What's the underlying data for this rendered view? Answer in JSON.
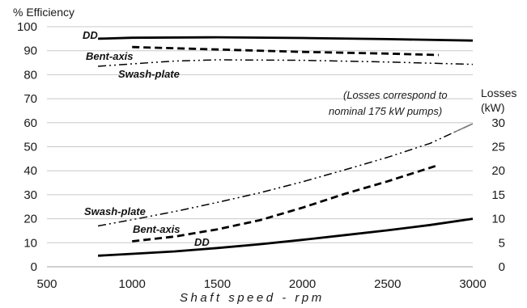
{
  "chart_data": {
    "type": "line",
    "title": "",
    "xlabel": "Shaft speed - rpm",
    "ylabel": "% Efficiency",
    "y2label_line1": "Losses",
    "y2label_line2": "(kW)",
    "note_line1": "(Losses correspond to",
    "note_line2": "nominal 175 kW pumps)",
    "xlim": [
      500,
      3000
    ],
    "ylim": [
      0,
      100
    ],
    "y2lim": [
      0,
      50
    ],
    "xticks": [
      500,
      1000,
      1500,
      2000,
      2500,
      3000
    ],
    "yticks": [
      0,
      10,
      20,
      30,
      40,
      50,
      60,
      70,
      80,
      90,
      100
    ],
    "y2ticks": [
      0,
      5,
      10,
      15,
      20,
      25,
      30
    ],
    "grid": "horizontal",
    "colors": {
      "line": "#000000",
      "grid": "#c8c8c8",
      "loss_tail": "#808080"
    },
    "series": [
      {
        "name": "DD",
        "group": "efficiency",
        "axis": "left",
        "style": "solid",
        "x": [
          800,
          1000,
          1500,
          2000,
          2500,
          3000
        ],
        "y": [
          95,
          95.4,
          95.6,
          95.3,
          94.8,
          94.2
        ]
      },
      {
        "name": "Bent-axis",
        "group": "efficiency",
        "axis": "left",
        "style": "dashed",
        "x": [
          1000,
          1250,
          1500,
          2000,
          2500,
          2800
        ],
        "y": [
          91.5,
          91,
          90.5,
          89.5,
          88.8,
          88.2
        ]
      },
      {
        "name": "Swash-plate",
        "group": "efficiency",
        "axis": "left",
        "style": "dashdotdot",
        "x": [
          800,
          1000,
          1250,
          1500,
          2000,
          2500,
          3000
        ],
        "y": [
          83.5,
          84.5,
          85.7,
          86.2,
          86,
          85.3,
          84.3
        ]
      },
      {
        "name": "DD",
        "group": "losses",
        "axis": "right",
        "style": "solid",
        "x": [
          800,
          1000,
          1250,
          1500,
          1750,
          2000,
          2250,
          2500,
          2750,
          3000
        ],
        "y": [
          2.3,
          2.7,
          3.2,
          3.9,
          4.7,
          5.6,
          6.6,
          7.6,
          8.7,
          10
        ]
      },
      {
        "name": "Bent-axis",
        "group": "losses",
        "axis": "right",
        "style": "dashed",
        "x": [
          1000,
          1250,
          1500,
          1750,
          2000,
          2250,
          2500,
          2800
        ],
        "y": [
          5.3,
          6.3,
          7.8,
          9.7,
          12.3,
          15.2,
          17.8,
          21.2
        ]
      },
      {
        "name": "Swash-plate",
        "group": "losses",
        "axis": "right",
        "style": "dashdotdot",
        "x": [
          800,
          1000,
          1250,
          1500,
          1750,
          2000,
          2250,
          2500,
          2750,
          3000
        ],
        "y": [
          8.5,
          9.8,
          11.5,
          13.4,
          15.4,
          17.7,
          20.2,
          22.8,
          25.7,
          29.8
        ]
      }
    ]
  }
}
